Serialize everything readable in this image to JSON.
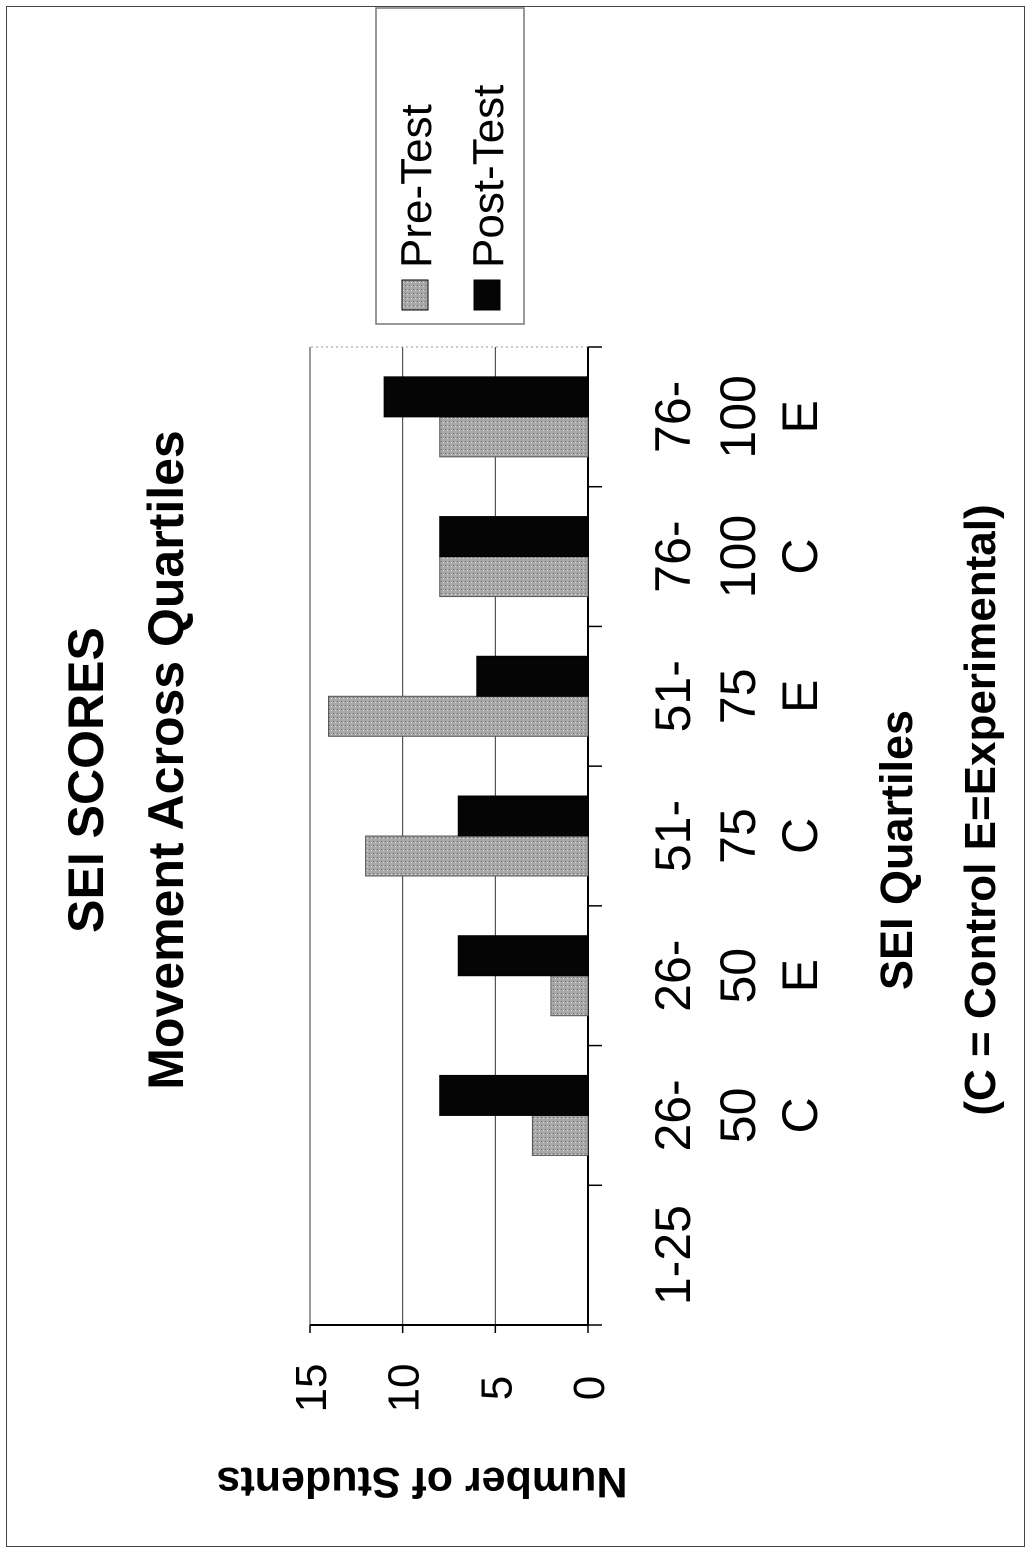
{
  "chart_data": {
    "type": "bar",
    "orientation": "rotated-90-ccw",
    "title": "SEI SCORES",
    "subtitle": "Movement Across Quartiles",
    "xlabel": "SEI Quartiles",
    "xlabel_note": "(C = Control  E=Experimental)",
    "ylabel": "Number of Students",
    "ylim": [
      0,
      15
    ],
    "yticks": [
      "0",
      "5",
      "10",
      "15"
    ],
    "grid": true,
    "legend_position": "top-right",
    "categories": [
      {
        "lines": [
          "1-25"
        ]
      },
      {
        "lines": [
          "26-",
          "50",
          "C"
        ]
      },
      {
        "lines": [
          "26-",
          "50",
          "E"
        ]
      },
      {
        "lines": [
          "51-",
          "75",
          "C"
        ]
      },
      {
        "lines": [
          "51-",
          "75",
          "E"
        ]
      },
      {
        "lines": [
          "76-",
          "100",
          "C"
        ]
      },
      {
        "lines": [
          "76-",
          "100",
          "E"
        ]
      }
    ],
    "series": [
      {
        "name": "Pre-Test",
        "color": "#a8a8a8",
        "values": [
          0,
          3,
          2,
          12,
          14,
          8,
          8
        ]
      },
      {
        "name": "Post-Test",
        "color": "#050505",
        "values": [
          0,
          8,
          7,
          7,
          6,
          8,
          11
        ]
      }
    ]
  }
}
